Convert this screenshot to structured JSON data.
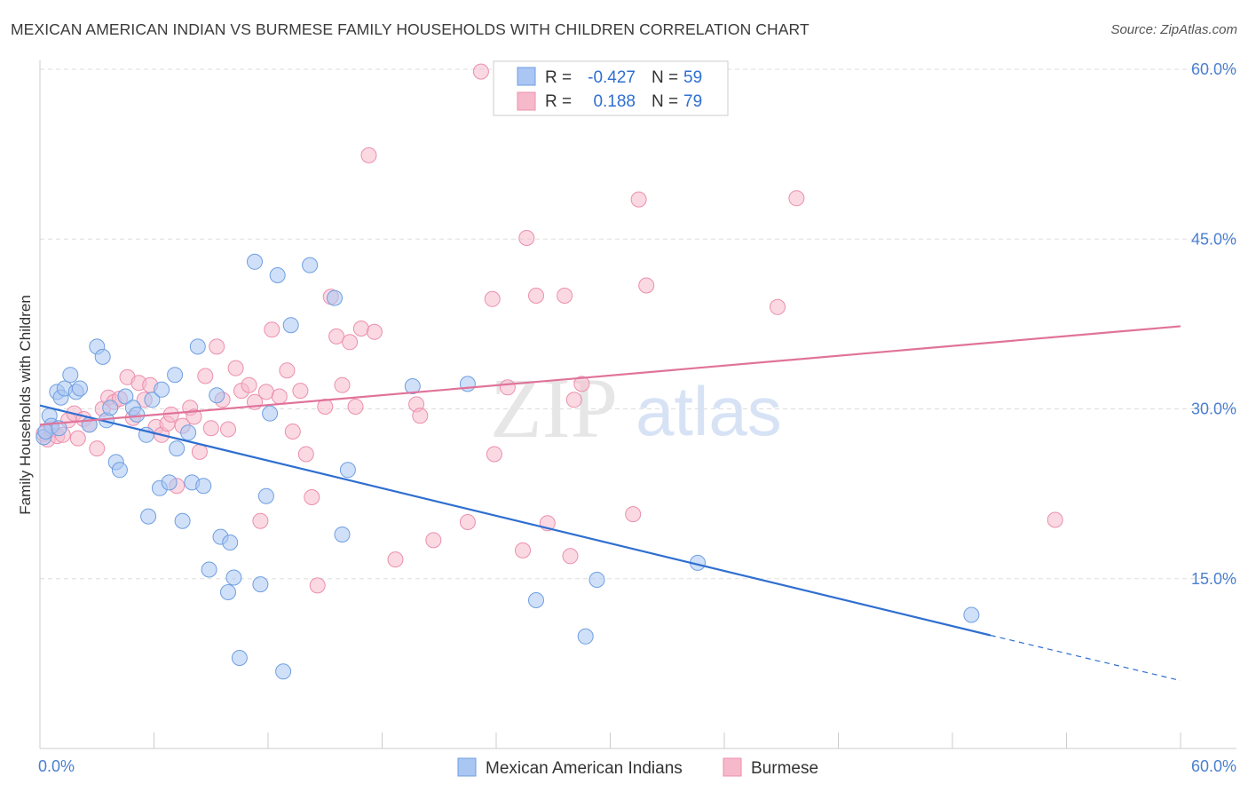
{
  "title": "MEXICAN AMERICAN INDIAN VS BURMESE FAMILY HOUSEHOLDS WITH CHILDREN CORRELATION CHART",
  "source": "Source: ZipAtlas.com",
  "watermark": {
    "zip": "ZIP",
    "atlas": "atlas"
  },
  "colors": {
    "blue_fill": "#aac6f2",
    "blue_stroke": "#6f9fe0",
    "blue_line": "#2f6fd0",
    "pink_fill": "#f6b9cc",
    "pink_stroke": "#ec8fad",
    "pink_line": "#e0739a",
    "grid": "#dddddd",
    "tick_text": "#4a7fd0"
  },
  "legend": {
    "rows": [
      {
        "r_label": "R =",
        "r_value": "-0.427",
        "n_label": "N =",
        "n_value": "59"
      },
      {
        "r_label": "R =",
        "r_value": "0.188",
        "n_label": "N =",
        "n_value": "79"
      }
    ]
  },
  "chart_data": {
    "type": "scatter",
    "title": "MEXICAN AMERICAN INDIAN VS BURMESE FAMILY HOUSEHOLDS WITH CHILDREN CORRELATION CHART",
    "xlabel": "",
    "ylabel": "Family Households with Children",
    "xlim": [
      0,
      60
    ],
    "ylim": [
      0,
      60
    ],
    "x_tick_labels": [
      "0.0%",
      "60.0%"
    ],
    "y_ticks": [
      15,
      30,
      45,
      60
    ],
    "y_tick_labels": [
      "15.0%",
      "30.0%",
      "45.0%",
      "60.0%"
    ],
    "grid": true,
    "legend_placement": "bottom-center",
    "series": [
      {
        "name": "Mexican American Indians",
        "color": "#aac6f2",
        "r": -0.427,
        "n": 59,
        "trend": {
          "x0": 0,
          "y0": 30.3,
          "x1": 50,
          "y1": 10.0,
          "dashed_to_x": 60,
          "dashed_to_y": 6.0
        },
        "points": [
          [
            0.2,
            27.5
          ],
          [
            0.5,
            29.4
          ],
          [
            0.6,
            28.5
          ],
          [
            0.9,
            31.5
          ],
          [
            1.1,
            31.0
          ],
          [
            1.3,
            31.8
          ],
          [
            1.6,
            33.0
          ],
          [
            1.9,
            31.5
          ],
          [
            2.1,
            31.8
          ],
          [
            2.6,
            28.6
          ],
          [
            3.0,
            35.5
          ],
          [
            3.3,
            34.6
          ],
          [
            3.5,
            29.0
          ],
          [
            3.7,
            30.1
          ],
          [
            4.0,
            25.3
          ],
          [
            4.2,
            24.6
          ],
          [
            4.5,
            31.1
          ],
          [
            4.9,
            30.1
          ],
          [
            5.1,
            29.5
          ],
          [
            5.6,
            27.7
          ],
          [
            5.7,
            20.5
          ],
          [
            5.9,
            30.8
          ],
          [
            6.3,
            23.0
          ],
          [
            6.4,
            31.7
          ],
          [
            6.8,
            23.5
          ],
          [
            7.1,
            33.0
          ],
          [
            7.2,
            26.5
          ],
          [
            7.5,
            20.1
          ],
          [
            7.8,
            27.9
          ],
          [
            8.0,
            23.5
          ],
          [
            8.3,
            35.5
          ],
          [
            8.6,
            23.2
          ],
          [
            8.9,
            15.8
          ],
          [
            9.3,
            31.2
          ],
          [
            9.5,
            18.7
          ],
          [
            9.9,
            13.8
          ],
          [
            10.0,
            18.2
          ],
          [
            10.2,
            15.1
          ],
          [
            10.5,
            8.0
          ],
          [
            11.3,
            43.0
          ],
          [
            11.6,
            14.5
          ],
          [
            11.9,
            22.3
          ],
          [
            12.1,
            29.6
          ],
          [
            12.5,
            41.8
          ],
          [
            12.8,
            6.8
          ],
          [
            13.2,
            37.4
          ],
          [
            14.2,
            42.7
          ],
          [
            15.5,
            39.8
          ],
          [
            15.9,
            18.9
          ],
          [
            16.2,
            24.6
          ],
          [
            19.6,
            32.0
          ],
          [
            22.5,
            32.2
          ],
          [
            26.1,
            13.1
          ],
          [
            28.7,
            9.9
          ],
          [
            29.3,
            14.9
          ],
          [
            34.6,
            16.4
          ],
          [
            49.0,
            11.8
          ],
          [
            0.3,
            28.0
          ],
          [
            1.0,
            28.3
          ]
        ]
      },
      {
        "name": "Burmese",
        "color": "#f6b9cc",
        "r": 0.188,
        "n": 79,
        "trend": {
          "x0": 0,
          "y0": 28.6,
          "x1": 60,
          "y1": 37.3
        },
        "points": [
          [
            0.2,
            27.8
          ],
          [
            0.4,
            27.3
          ],
          [
            0.6,
            28.2
          ],
          [
            0.9,
            27.6
          ],
          [
            1.2,
            27.7
          ],
          [
            1.5,
            29.0
          ],
          [
            1.8,
            29.6
          ],
          [
            2.0,
            27.4
          ],
          [
            2.3,
            29.1
          ],
          [
            2.6,
            28.6
          ],
          [
            3.0,
            26.5
          ],
          [
            3.3,
            30.0
          ],
          [
            3.6,
            31.0
          ],
          [
            3.9,
            30.6
          ],
          [
            4.2,
            30.9
          ],
          [
            4.6,
            32.8
          ],
          [
            4.9,
            29.2
          ],
          [
            5.2,
            32.3
          ],
          [
            5.5,
            30.8
          ],
          [
            5.8,
            32.1
          ],
          [
            6.1,
            28.4
          ],
          [
            6.4,
            27.7
          ],
          [
            6.7,
            28.7
          ],
          [
            6.9,
            29.5
          ],
          [
            7.2,
            23.2
          ],
          [
            7.5,
            28.5
          ],
          [
            7.9,
            30.1
          ],
          [
            8.1,
            29.3
          ],
          [
            8.4,
            26.2
          ],
          [
            8.7,
            32.9
          ],
          [
            9.0,
            28.3
          ],
          [
            9.3,
            35.5
          ],
          [
            9.6,
            30.8
          ],
          [
            9.9,
            28.2
          ],
          [
            10.3,
            33.6
          ],
          [
            10.6,
            31.6
          ],
          [
            11.0,
            32.1
          ],
          [
            11.3,
            30.6
          ],
          [
            11.6,
            20.1
          ],
          [
            11.9,
            31.5
          ],
          [
            12.2,
            37.0
          ],
          [
            12.6,
            31.1
          ],
          [
            13.0,
            33.4
          ],
          [
            13.3,
            28.0
          ],
          [
            13.7,
            31.6
          ],
          [
            14.0,
            26.0
          ],
          [
            14.3,
            22.2
          ],
          [
            14.6,
            14.4
          ],
          [
            15.0,
            30.2
          ],
          [
            15.3,
            39.9
          ],
          [
            15.6,
            36.4
          ],
          [
            15.9,
            32.1
          ],
          [
            16.3,
            35.9
          ],
          [
            16.6,
            30.2
          ],
          [
            16.9,
            37.1
          ],
          [
            17.6,
            36.8
          ],
          [
            17.3,
            52.4
          ],
          [
            18.7,
            16.7
          ],
          [
            19.8,
            30.4
          ],
          [
            20.0,
            29.4
          ],
          [
            20.7,
            18.4
          ],
          [
            22.5,
            20.0
          ],
          [
            23.2,
            59.8
          ],
          [
            23.8,
            39.7
          ],
          [
            23.9,
            26.0
          ],
          [
            24.6,
            31.9
          ],
          [
            25.4,
            17.5
          ],
          [
            25.6,
            45.1
          ],
          [
            26.1,
            40.0
          ],
          [
            26.7,
            19.9
          ],
          [
            27.6,
            40.0
          ],
          [
            27.9,
            17.0
          ],
          [
            28.1,
            30.8
          ],
          [
            28.5,
            32.2
          ],
          [
            31.2,
            20.7
          ],
          [
            31.5,
            48.5
          ],
          [
            31.9,
            40.9
          ],
          [
            38.8,
            39.0
          ],
          [
            39.8,
            48.6
          ],
          [
            53.4,
            20.2
          ]
        ]
      }
    ]
  }
}
